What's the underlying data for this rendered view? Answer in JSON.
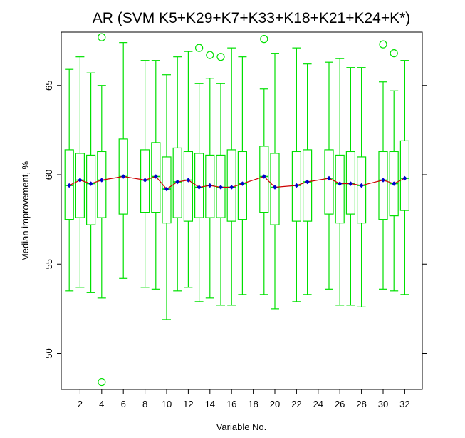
{
  "chart_data": {
    "type": "boxplot",
    "title": "AR (SVM K5+K29+K7+K33+K18+K21+K24+K*)",
    "xlabel": "Variable No.",
    "ylabel": "Median improvement, %",
    "xlim": [
      0,
      33
    ],
    "ylim": [
      48,
      68
    ],
    "x_ticks": [
      2,
      4,
      6,
      8,
      10,
      12,
      14,
      16,
      18,
      20,
      22,
      24,
      26,
      28,
      30,
      32
    ],
    "y_ticks": [
      50,
      55,
      60,
      65
    ],
    "box_color": "#00e000",
    "line_color": "#cc0000",
    "median_marker_color": "#0000cc",
    "grid": false,
    "boxes": [
      {
        "x": 1,
        "whisker_low": 53.5,
        "q1": 57.5,
        "median": 59.4,
        "q3": 61.4,
        "whisker_high": 65.9,
        "outliers": []
      },
      {
        "x": 2,
        "whisker_low": 53.7,
        "q1": 57.6,
        "median": 59.7,
        "q3": 61.2,
        "whisker_high": 66.6,
        "outliers": []
      },
      {
        "x": 3,
        "whisker_low": 53.4,
        "q1": 57.2,
        "median": 59.5,
        "q3": 61.1,
        "whisker_high": 65.7,
        "outliers": []
      },
      {
        "x": 4,
        "whisker_low": 53.1,
        "q1": 57.6,
        "median": 59.7,
        "q3": 61.3,
        "whisker_high": 65.0,
        "outliers": [
          67.7,
          48.4
        ]
      },
      {
        "x": 6,
        "whisker_low": 54.2,
        "q1": 57.8,
        "median": 59.9,
        "q3": 62.0,
        "whisker_high": 67.4,
        "outliers": []
      },
      {
        "x": 8,
        "whisker_low": 53.7,
        "q1": 57.9,
        "median": 59.7,
        "q3": 61.4,
        "whisker_high": 66.4,
        "outliers": []
      },
      {
        "x": 9,
        "whisker_low": 53.6,
        "q1": 57.9,
        "median": 59.9,
        "q3": 61.8,
        "whisker_high": 66.4,
        "outliers": []
      },
      {
        "x": 10,
        "whisker_low": 51.9,
        "q1": 57.3,
        "median": 59.2,
        "q3": 61.0,
        "whisker_high": 65.6,
        "outliers": []
      },
      {
        "x": 11,
        "whisker_low": 53.5,
        "q1": 57.6,
        "median": 59.6,
        "q3": 61.5,
        "whisker_high": 66.6,
        "outliers": []
      },
      {
        "x": 12,
        "whisker_low": 53.7,
        "q1": 57.4,
        "median": 59.7,
        "q3": 61.3,
        "whisker_high": 66.9,
        "outliers": []
      },
      {
        "x": 13,
        "whisker_low": 52.9,
        "q1": 57.6,
        "median": 59.3,
        "q3": 61.2,
        "whisker_high": 65.1,
        "outliers": [
          67.1
        ]
      },
      {
        "x": 14,
        "whisker_low": 53.1,
        "q1": 57.6,
        "median": 59.4,
        "q3": 61.1,
        "whisker_high": 65.4,
        "outliers": [
          66.7
        ]
      },
      {
        "x": 15,
        "whisker_low": 52.7,
        "q1": 57.6,
        "median": 59.3,
        "q3": 61.1,
        "whisker_high": 65.1,
        "outliers": [
          66.6
        ]
      },
      {
        "x": 16,
        "whisker_low": 52.7,
        "q1": 57.4,
        "median": 59.3,
        "q3": 61.4,
        "whisker_high": 67.1,
        "outliers": []
      },
      {
        "x": 17,
        "whisker_low": 53.3,
        "q1": 57.5,
        "median": 59.5,
        "q3": 61.3,
        "whisker_high": 66.6,
        "outliers": []
      },
      {
        "x": 19,
        "whisker_low": 53.3,
        "q1": 57.9,
        "median": 59.9,
        "q3": 61.6,
        "whisker_high": 64.8,
        "outliers": [
          67.6
        ]
      },
      {
        "x": 20,
        "whisker_low": 52.5,
        "q1": 57.2,
        "median": 59.3,
        "q3": 61.2,
        "whisker_high": 66.8,
        "outliers": []
      },
      {
        "x": 22,
        "whisker_low": 52.9,
        "q1": 57.4,
        "median": 59.4,
        "q3": 61.3,
        "whisker_high": 67.1,
        "outliers": []
      },
      {
        "x": 23,
        "whisker_low": 53.3,
        "q1": 57.4,
        "median": 59.6,
        "q3": 61.4,
        "whisker_high": 66.2,
        "outliers": []
      },
      {
        "x": 25,
        "whisker_low": 53.6,
        "q1": 57.8,
        "median": 59.8,
        "q3": 61.4,
        "whisker_high": 66.3,
        "outliers": []
      },
      {
        "x": 26,
        "whisker_low": 52.7,
        "q1": 57.3,
        "median": 59.5,
        "q3": 61.1,
        "whisker_high": 66.5,
        "outliers": []
      },
      {
        "x": 27,
        "whisker_low": 52.7,
        "q1": 57.8,
        "median": 59.5,
        "q3": 61.3,
        "whisker_high": 66.0,
        "outliers": []
      },
      {
        "x": 28,
        "whisker_low": 52.6,
        "q1": 57.3,
        "median": 59.4,
        "q3": 61.0,
        "whisker_high": 66.0,
        "outliers": []
      },
      {
        "x": 30,
        "whisker_low": 53.6,
        "q1": 57.5,
        "median": 59.7,
        "q3": 61.3,
        "whisker_high": 65.2,
        "outliers": [
          67.3
        ]
      },
      {
        "x": 31,
        "whisker_low": 53.5,
        "q1": 57.7,
        "median": 59.5,
        "q3": 61.3,
        "whisker_high": 64.7,
        "outliers": [
          66.8
        ]
      },
      {
        "x": 32,
        "whisker_low": 53.3,
        "q1": 58.0,
        "median": 59.8,
        "q3": 61.9,
        "whisker_high": 66.4,
        "outliers": []
      }
    ]
  }
}
